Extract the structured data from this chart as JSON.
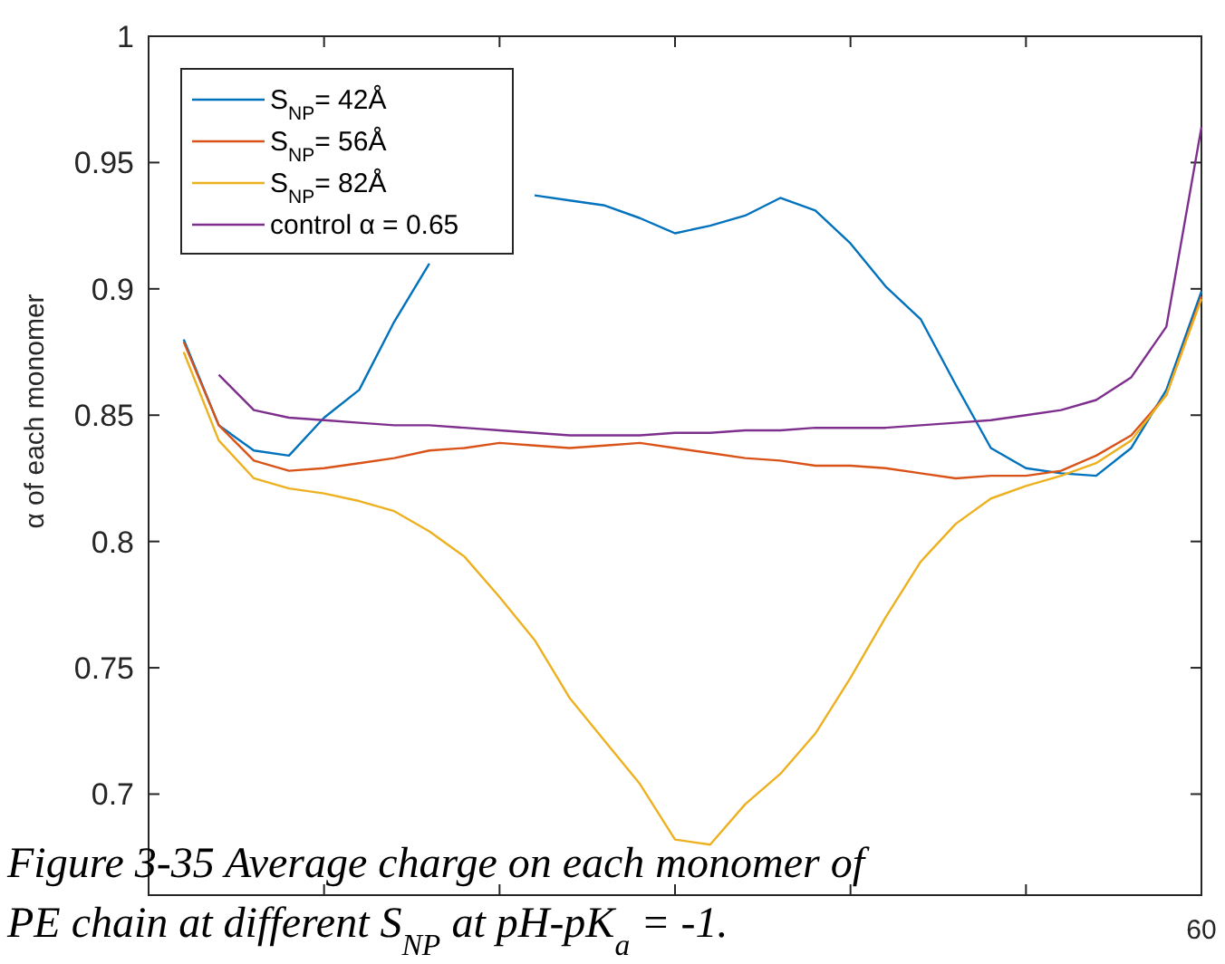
{
  "chart_data": {
    "type": "line",
    "ylabel": "α of each monomer",
    "categories": [
      null,
      null,
      null,
      null,
      null,
      null,
      null,
      null,
      null,
      null,
      null,
      null,
      null,
      null,
      null,
      null,
      null,
      null,
      null,
      null,
      null,
      null,
      null,
      null,
      null,
      null,
      null,
      null,
      null,
      null
    ],
    "ylim": [
      0.66,
      1
    ],
    "yticks": [
      0.7,
      0.75,
      0.8,
      0.85,
      0.9,
      0.95,
      1
    ],
    "grid": false,
    "legend": "top left",
    "line_style": "solid",
    "series": [
      {
        "name": "S$_{NP}$= 42Å",
        "color": "#0072bd",
        "values": [
          0.88,
          0.846,
          0.836,
          0.834,
          0.849,
          0.86,
          0.887,
          0.91,
          null,
          null,
          0.937,
          0.935,
          0.933,
          0.928,
          0.922,
          0.925,
          0.929,
          0.936,
          0.931,
          0.918,
          0.901,
          0.888,
          0.862,
          0.837,
          0.829,
          0.827,
          0.826,
          0.837,
          0.86,
          0.899
        ]
      },
      {
        "name": "S$_{NP}$= 56Å",
        "color": "#d95319",
        "values": [
          0.879,
          0.846,
          0.832,
          0.828,
          0.829,
          0.831,
          0.833,
          0.836,
          0.837,
          0.839,
          0.838,
          0.837,
          0.838,
          0.839,
          0.837,
          0.835,
          0.833,
          0.832,
          0.83,
          0.83,
          0.829,
          0.827,
          0.825,
          0.826,
          0.826,
          0.828,
          0.834,
          0.842,
          0.858,
          0.897
        ]
      },
      {
        "name": "S$_{NP}$= 82Å",
        "color": "#edb120",
        "values": [
          0.875,
          0.84,
          0.825,
          0.821,
          0.819,
          0.816,
          0.812,
          0.804,
          0.794,
          0.778,
          0.761,
          0.738,
          0.721,
          0.704,
          0.682,
          0.68,
          0.696,
          0.708,
          0.724,
          0.746,
          0.77,
          0.792,
          0.807,
          0.817,
          0.822,
          0.826,
          0.831,
          0.84,
          0.858,
          0.896
        ]
      },
      {
        "name": "control α = 0.65",
        "color": "#7e2f8e",
        "values": [
          null,
          0.866,
          0.852,
          0.849,
          0.848,
          0.847,
          0.846,
          0.846,
          0.845,
          0.844,
          0.843,
          0.842,
          0.842,
          0.842,
          0.843,
          0.843,
          0.844,
          0.844,
          0.845,
          0.845,
          0.845,
          0.846,
          0.847,
          0.848,
          0.85,
          0.852,
          0.856,
          0.865,
          0.885,
          0.964
        ]
      }
    ],
    "annotations": [
      "60",
      "Figure 3-35 Average charge on each monomer of",
      "PE chain at different S$_{NP}$ at pH-pK$_{a}$ = -1."
    ]
  }
}
